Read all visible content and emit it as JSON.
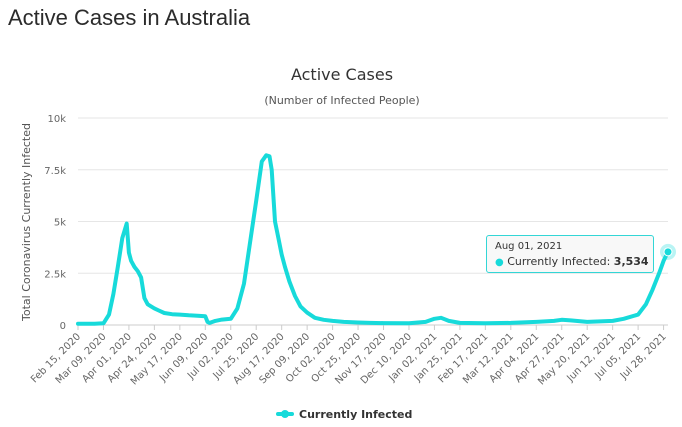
{
  "page": {
    "heading": "Active Cases in Australia"
  },
  "tooltip": {
    "date": "Aug 01, 2021",
    "series": "Currently Infected",
    "separator": ":",
    "value": "3,534"
  },
  "colors": {
    "series": "#17dada",
    "grid": "#e6e6e6",
    "axis_text": "#666666",
    "title": "#333333"
  },
  "chart_data": {
    "type": "line",
    "title": "Active Cases",
    "subtitle": "(Number of Infected People)",
    "ylabel": "Total Coronavirus Currently Infected",
    "xlabel": "",
    "ylim": [
      0,
      10000
    ],
    "yticks": [
      0,
      2500,
      5000,
      7500,
      10000
    ],
    "ytick_labels": [
      "0",
      "2.5k",
      "5k",
      "7.5k",
      "10k"
    ],
    "xtick_labels": [
      "Feb 15, 2020",
      "Mar 09, 2020",
      "Apr 01, 2020",
      "Apr 24, 2020",
      "May 17, 2020",
      "Jun 09, 2020",
      "Jul 02, 2020",
      "Jul 25, 2020",
      "Aug 17, 2020",
      "Sep 09, 2020",
      "Oct 02, 2020",
      "Oct 25, 2020",
      "Nov 17, 2020",
      "Dec 10, 2020",
      "Jan 02, 2021",
      "Jan 25, 2021",
      "Feb 17, 2021",
      "Mar 12, 2021",
      "Apr 04, 2021",
      "Apr 27, 2021",
      "May 20, 2021",
      "Jun 12, 2021",
      "Jul 05, 2021",
      "Jul 28, 2021"
    ],
    "legend": {
      "position": "bottom-center",
      "entries": [
        "Currently Infected"
      ]
    },
    "grid": true,
    "series": [
      {
        "name": "Currently Infected",
        "x": [
          "Feb 15, 2020",
          "Mar 01, 2020",
          "Mar 09, 2020",
          "Mar 14, 2020",
          "Mar 18, 2020",
          "Mar 22, 2020",
          "Mar 26, 2020",
          "Mar 30, 2020",
          "Apr 01, 2020",
          "Apr 03, 2020",
          "Apr 06, 2020",
          "Apr 09, 2020",
          "Apr 12, 2020",
          "Apr 15, 2020",
          "Apr 18, 2020",
          "Apr 21, 2020",
          "Apr 24, 2020",
          "Apr 28, 2020",
          "May 03, 2020",
          "May 10, 2020",
          "May 17, 2020",
          "May 25, 2020",
          "Jun 02, 2020",
          "Jun 09, 2020",
          "Jun 11, 2020",
          "Jun 13, 2020",
          "Jun 18, 2020",
          "Jun 24, 2020",
          "Jul 02, 2020",
          "Jul 08, 2020",
          "Jul 14, 2020",
          "Jul 20, 2020",
          "Jul 25, 2020",
          "Jul 30, 2020",
          "Aug 03, 2020",
          "Aug 06, 2020",
          "Aug 08, 2020",
          "Aug 11, 2020",
          "Aug 14, 2020",
          "Aug 17, 2020",
          "Aug 20, 2020",
          "Aug 24, 2020",
          "Aug 29, 2020",
          "Sep 03, 2020",
          "Sep 09, 2020",
          "Sep 16, 2020",
          "Sep 24, 2020",
          "Oct 02, 2020",
          "Oct 12, 2020",
          "Oct 25, 2020",
          "Nov 05, 2020",
          "Nov 17, 2020",
          "Dec 10, 2020",
          "Dec 25, 2020",
          "Jan 02, 2021",
          "Jan 08, 2021",
          "Jan 15, 2021",
          "Jan 25, 2021",
          "Feb 17, 2021",
          "Mar 12, 2021",
          "Apr 04, 2021",
          "Apr 20, 2021",
          "Apr 27, 2021",
          "May 05, 2021",
          "May 20, 2021",
          "Jun 12, 2021",
          "Jun 22, 2021",
          "Jul 05, 2021",
          "Jul 12, 2021",
          "Jul 18, 2021",
          "Jul 24, 2021",
          "Jul 28, 2021",
          "Aug 01, 2021"
        ],
        "values": [
          60,
          60,
          80,
          500,
          1500,
          2800,
          4200,
          4900,
          3500,
          3100,
          2800,
          2600,
          2300,
          1300,
          1000,
          900,
          800,
          700,
          580,
          520,
          500,
          470,
          450,
          420,
          150,
          100,
          200,
          260,
          300,
          800,
          2000,
          4200,
          6000,
          7900,
          8200,
          8150,
          7500,
          5000,
          4200,
          3400,
          2800,
          2100,
          1400,
          900,
          600,
          350,
          250,
          200,
          150,
          120,
          100,
          90,
          80,
          150,
          300,
          350,
          200,
          100,
          80,
          100,
          150,
          200,
          250,
          220,
          150,
          200,
          300,
          500,
          1000,
          1700,
          2500,
          3100,
          3534
        ]
      }
    ],
    "highlight": {
      "x": "Aug 01, 2021",
      "value": 3534
    }
  }
}
